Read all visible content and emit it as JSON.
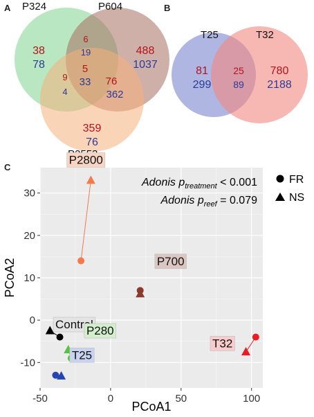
{
  "panels": {
    "a": {
      "letter": "A"
    },
    "b": {
      "letter": "B"
    },
    "c": {
      "letter": "C"
    }
  },
  "venn_a": {
    "sets": [
      {
        "name": "P324",
        "color": "#7fd48f"
      },
      {
        "name": "P604",
        "color": "#a86f62"
      },
      {
        "name": "P2553",
        "color": "#f5b07a"
      }
    ],
    "regions": [
      {
        "id": "p324-only",
        "red": "38",
        "blue": "78"
      },
      {
        "id": "p604-only",
        "red": "488",
        "blue": "1037"
      },
      {
        "id": "p2553-only",
        "red": "359",
        "blue": "76"
      },
      {
        "id": "p324-p604",
        "red": "6",
        "blue": "19"
      },
      {
        "id": "p324-p2553",
        "red": "9",
        "blue": "4"
      },
      {
        "id": "p604-p2553",
        "red": "76",
        "blue": "362"
      },
      {
        "id": "all-three",
        "red": "5",
        "blue": "33"
      }
    ]
  },
  "venn_b": {
    "sets": [
      {
        "name": "T25",
        "color": "#7b86cf"
      },
      {
        "name": "T32",
        "color": "#f2877f"
      }
    ],
    "regions": [
      {
        "id": "t25-only",
        "red": "81",
        "blue": "299"
      },
      {
        "id": "overlap",
        "red": "25",
        "blue": "89"
      },
      {
        "id": "t32-only",
        "red": "780",
        "blue": "2188"
      }
    ]
  },
  "count_colors": {
    "red": "#b5121b",
    "blue": "#2b3a9a"
  },
  "chart_data": {
    "type": "scatter",
    "xlabel": "PCoA1",
    "ylabel": "PCoA2",
    "xlim": [
      -50,
      108
    ],
    "ylim": [
      -16,
      36
    ],
    "xticks": [
      -50,
      0,
      50,
      100
    ],
    "yticks": [
      -10,
      0,
      10,
      20,
      30
    ],
    "grid": true,
    "legend": {
      "placement": "top-right",
      "entries": [
        {
          "label": "FR",
          "shape": "circle"
        },
        {
          "label": "NS",
          "shape": "triangle"
        }
      ]
    },
    "annotations": [
      {
        "lead": "Adonis p",
        "sub": "treatment",
        "tail": " < 0.001"
      },
      {
        "lead": "Adonis p",
        "sub": "reef",
        "tail": " = 0.079"
      }
    ],
    "groups": [
      {
        "name": "P2800",
        "color": "#f47a4c",
        "label_bg": "#f8d4c3",
        "points": [
          {
            "x": -21,
            "y": 14,
            "shape": "circle"
          },
          {
            "x": -14,
            "y": 33,
            "shape": "triangle"
          }
        ]
      },
      {
        "name": "P700",
        "color": "#8b3a2e",
        "label_bg": "#dcc6c1",
        "points": [
          {
            "x": 21,
            "y": 7,
            "shape": "circle"
          },
          {
            "x": 21,
            "y": 6.2,
            "shape": "triangle"
          }
        ]
      },
      {
        "name": "Control",
        "color": "#000000",
        "label_bg": "#e4e4e4",
        "points": [
          {
            "x": -36,
            "y": -4,
            "shape": "circle"
          },
          {
            "x": -43,
            "y": -2.5,
            "shape": "triangle"
          }
        ]
      },
      {
        "name": "P280",
        "color": "#52c341",
        "label_bg": "#d3eecb",
        "points": [
          {
            "x": -28,
            "y": -9,
            "shape": "circle"
          },
          {
            "x": -30,
            "y": -7,
            "shape": "triangle"
          }
        ]
      },
      {
        "name": "T25",
        "color": "#2644b0",
        "label_bg": "#c8d3ef",
        "points": [
          {
            "x": -39,
            "y": -13,
            "shape": "circle"
          },
          {
            "x": -35,
            "y": -13.2,
            "shape": "triangle"
          }
        ]
      },
      {
        "name": "T32",
        "color": "#ec1c24",
        "label_bg": "#f8cccc",
        "points": [
          {
            "x": 103,
            "y": -4,
            "shape": "circle"
          },
          {
            "x": 96,
            "y": -7.5,
            "shape": "triangle"
          }
        ]
      }
    ]
  }
}
